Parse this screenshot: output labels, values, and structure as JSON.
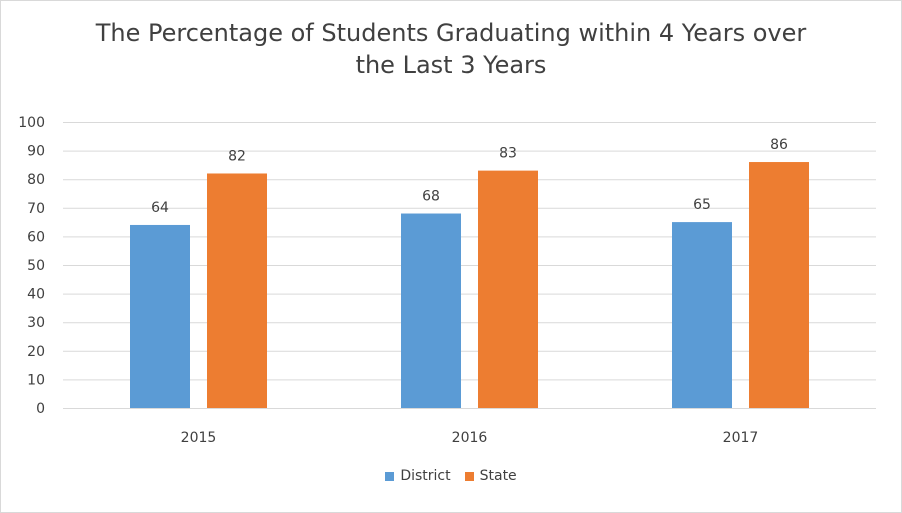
{
  "chart_data": {
    "type": "bar",
    "title": "The Percentage of Students Graduating within 4 Years over the Last 3 Years",
    "title_lines": [
      "The Percentage of Students Graduating within 4 Years over",
      "the Last 3 Years"
    ],
    "categories": [
      "2015",
      "2016",
      "2017"
    ],
    "series": [
      {
        "name": "District",
        "values": [
          64,
          68,
          65
        ],
        "color": "#5b9bd5"
      },
      {
        "name": "State",
        "values": [
          82,
          83,
          86
        ],
        "color": "#ed7d31"
      }
    ],
    "ylim": [
      0,
      100
    ],
    "yticks": [
      0,
      10,
      20,
      30,
      40,
      50,
      60,
      70,
      80,
      90,
      100
    ],
    "grid": true,
    "legend_position": "bottom",
    "xlabel": "",
    "ylabel": ""
  }
}
